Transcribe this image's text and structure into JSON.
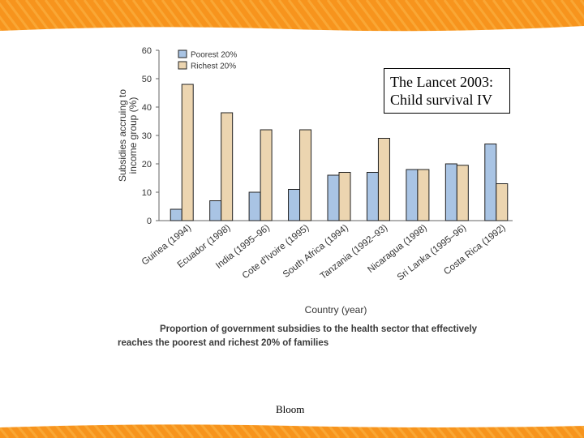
{
  "slide": {
    "note_line1": "The Lancet 2003:",
    "note_line2": "Child survival IV",
    "footer": "Bloom",
    "band_color": "#f7941d",
    "band_light": "#fbb040"
  },
  "chart_data": {
    "type": "bar",
    "title": "",
    "caption_line1": "Proportion of government subsidies to the health sector that effectively",
    "caption_line2": "reaches the poorest and richest 20% of families",
    "xlabel": "Country (year)",
    "ylabel_line1": "Subsidies accruing to",
    "ylabel_line2": "income group (%)",
    "ylim": [
      0,
      60
    ],
    "yticks": [
      0,
      10,
      20,
      30,
      40,
      50,
      60
    ],
    "legend_position": "top-left",
    "grid": false,
    "categories": [
      "Guinea (1994)",
      "Ecuador (1998)",
      "India (1995–96)",
      "Cote d'Ivoire (1995)",
      "South Africa (1994)",
      "Tanzania (1992–93)",
      "Nicaragua (1998)",
      "Sri Lanka (1995–96)",
      "Costa Rica (1992)"
    ],
    "series": [
      {
        "name": "Poorest 20%",
        "color": "#a9c4e4",
        "values": [
          4,
          7,
          10,
          11,
          16,
          17,
          18,
          20,
          27
        ]
      },
      {
        "name": "Richest 20%",
        "color": "#ecd5b0",
        "values": [
          48,
          38,
          32,
          32,
          17,
          29,
          18,
          19.5,
          13
        ]
      }
    ]
  }
}
